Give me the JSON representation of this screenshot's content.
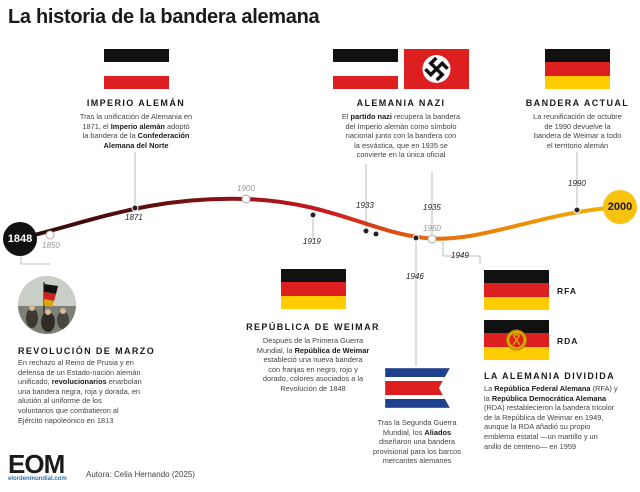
{
  "title": "La historia de la bandera alemana",
  "colors": {
    "black": "#111111",
    "white": "#ffffff",
    "red": "#dd1f1f",
    "gold": "#ffcc00",
    "timeline_start": "#2a0a0a",
    "timeline_mid": "#c8161e",
    "timeline_end": "#f4b400"
  },
  "years": {
    "start": "1848",
    "y1850": "1850",
    "y1871": "1871",
    "y1900": "1900",
    "y1919": "1919",
    "y1933": "1933",
    "y1935": "1935",
    "y1946": "1946",
    "y1949": "1949",
    "y1950": "1950",
    "y1990": "1990",
    "end": "2000"
  },
  "imperio": {
    "heading": "IMPERIO ALEMÁN",
    "d1": "Tras la unificación de Alemania en",
    "d2a": "1871, el ",
    "d2b": "Imperio alemán",
    "d2c": " adoptó",
    "d3a": "la bandera de la ",
    "d3b": "Confederación",
    "d4": "Alemana del Norte"
  },
  "nazi": {
    "heading": "ALEMANIA NAZI",
    "d1a": "El ",
    "d1b": "partido nazi",
    "d1c": " recupera la bandera",
    "d2": "del Imperio alemán como símbolo",
    "d3": "nacional junto con la bandera con",
    "d4": "la esvástica, que en 1935 se",
    "d5": "convierte en la única oficial"
  },
  "actual": {
    "heading": "BANDERA ACTUAL",
    "d1": "La reunificación de octubre",
    "d2": "de 1990 devuelve la",
    "d3": "bandera de Weimar a todo",
    "d4": "el territorio alemán"
  },
  "marzo": {
    "heading": "REVOLUCIÓN DE MARZO",
    "d1": "En rechazo al Reino de Prusia y en",
    "d2": "defensa de un Estado-nación alemán",
    "d3a": "unificado, ",
    "d3b": "revolucionarios",
    "d3c": " enarbolan",
    "d4": "una bandera negra, roja y dorada, en",
    "d5": "alusión al uniforme de los",
    "d6": "voluntarios que combatieron al",
    "d7": "Ejército napoleónico en 1813"
  },
  "weimar": {
    "heading": "REPÚBLICA DE WEIMAR",
    "d1": "Después de la Primera Guerra",
    "d2a": "Mundial, la ",
    "d2b": "República de Weimar",
    "d3": "estableció una nueva bandera",
    "d4": "con franjas en negro, rojo y",
    "d5": "dorado, colores asociados a la",
    "d6": "Revolución de 1848"
  },
  "aliados": {
    "d1": "Tras la Segunda Guerra",
    "d2a": "Mundial, los ",
    "d2b": "Aliados",
    "d3": "diseñaron una bandera",
    "d4": "provisional para los barcos",
    "d5": "mercantes alemanes"
  },
  "dividida": {
    "heading": "LA ALEMANIA DIVIDIDA",
    "rfa": "RFA",
    "rda": "RDA",
    "d1a": "La ",
    "d1b": "República Federal Alemana",
    "d1c": " (RFA) y",
    "d2a": "la ",
    "d2b": "República Democrática Alemana",
    "d3": "(RDA) restablecieron la bandera tricolor",
    "d4": "de la República de Weimar en 1949,",
    "d5": "aunque la RDA añadió su propio",
    "d6": "emblema estatal —un martillo y un",
    "d7": "anillo de centeno— en 1959"
  },
  "footer": {
    "logo": "EOM",
    "url": "elordenmundial.com",
    "author": "Autora: Celia Hernando (2025)"
  },
  "icons": {
    "swastika_flag": "nazi-swastika-flag-icon",
    "ddr_emblem": "ddr-hammer-compass-emblem-icon",
    "painting": "revolution-painting-icon",
    "logo": "eom-logo-icon"
  }
}
